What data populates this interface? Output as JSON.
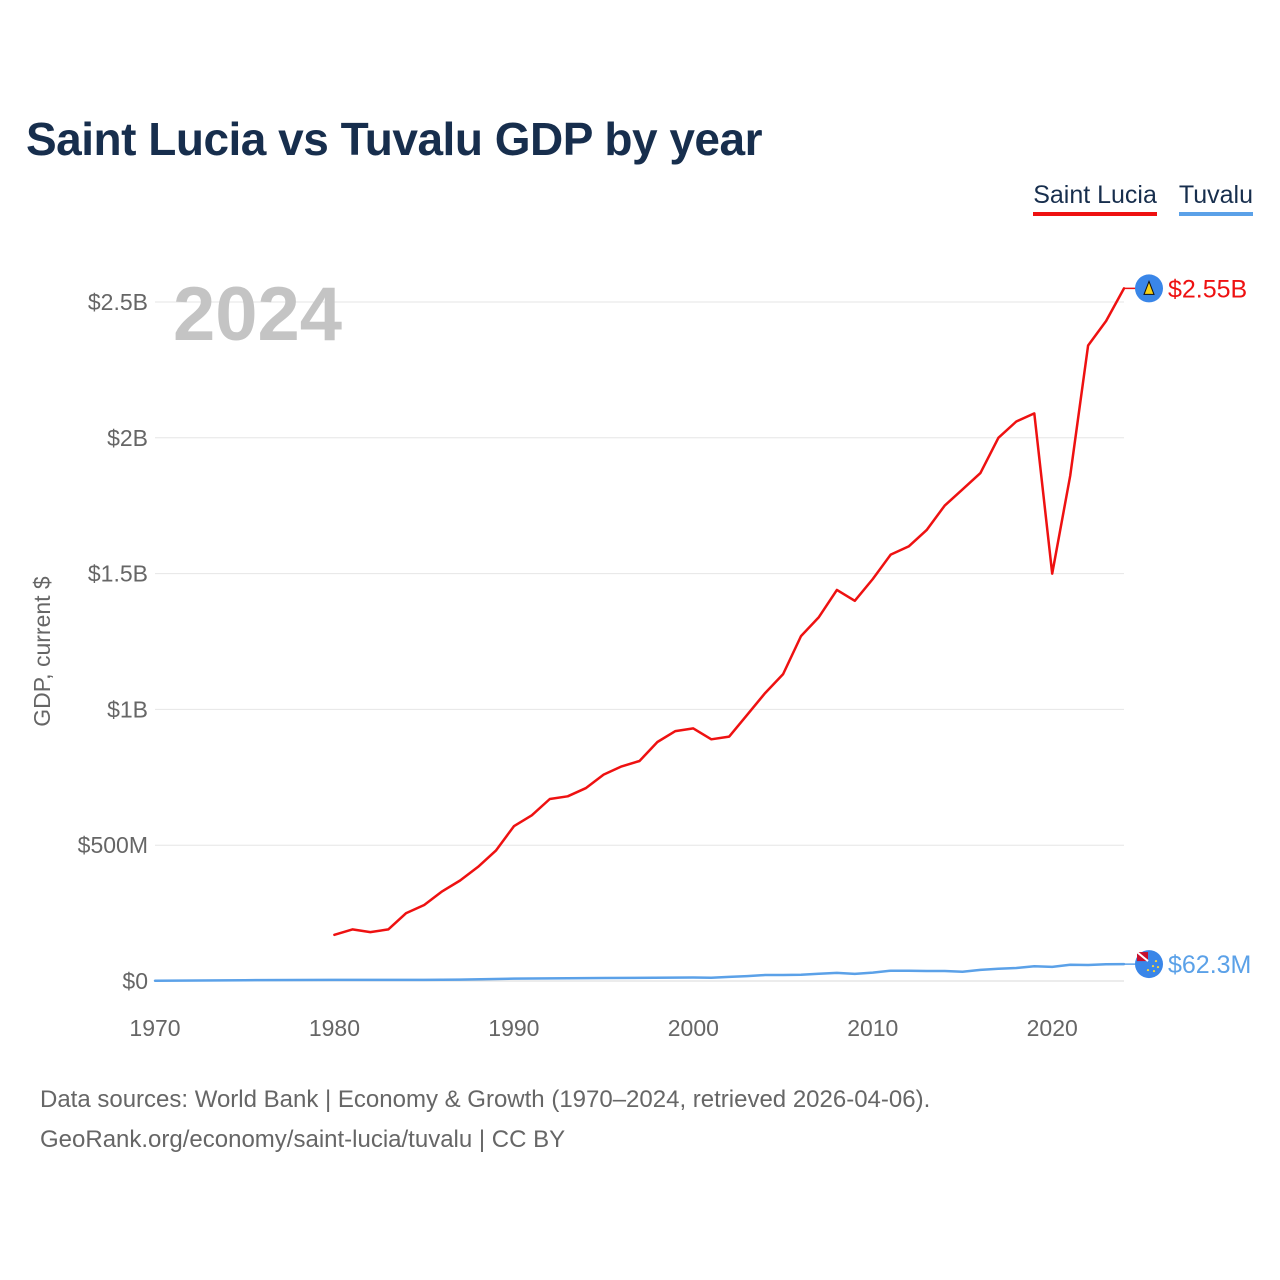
{
  "title": "Saint Lucia vs Tuvalu GDP by year",
  "legend": [
    {
      "label": "Saint Lucia",
      "color": "#ee1111"
    },
    {
      "label": "Tuvalu",
      "color": "#5ba1e8"
    }
  ],
  "footer": {
    "line1": "Data sources: World Bank | Economy & Growth (1970–2024, retrieved 2026-04-06).",
    "line2": "GeoRank.org/economy/saint-lucia/tuvalu | CC BY"
  },
  "chart_data": {
    "type": "line",
    "title": "Saint Lucia vs Tuvalu GDP by year",
    "xlabel": "",
    "ylabel": "GDP, current $",
    "xlim": [
      1970,
      2024
    ],
    "ylim": [
      0,
      2.75
    ],
    "y_unit": "billion US$",
    "x_ticks": [
      "1970",
      "1980",
      "1990",
      "2000",
      "2010",
      "2020"
    ],
    "y_ticks": [
      {
        "value": 0,
        "label": "$0"
      },
      {
        "value": 0.5,
        "label": "$500M"
      },
      {
        "value": 1,
        "label": "$1B"
      },
      {
        "value": 1.5,
        "label": "$1.5B"
      },
      {
        "value": 2,
        "label": "$2B"
      },
      {
        "value": 2.5,
        "label": "$2.5B"
      }
    ],
    "grid": true,
    "current_year": "2024",
    "series": [
      {
        "name": "Saint Lucia",
        "color": "#ee1111",
        "end_label": "$2.55B",
        "x": [
          1980,
          1981,
          1982,
          1983,
          1984,
          1985,
          1986,
          1987,
          1988,
          1989,
          1990,
          1991,
          1992,
          1993,
          1994,
          1995,
          1996,
          1997,
          1998,
          1999,
          2000,
          2001,
          2002,
          2003,
          2004,
          2005,
          2006,
          2007,
          2008,
          2009,
          2010,
          2011,
          2012,
          2013,
          2014,
          2015,
          2016,
          2017,
          2018,
          2019,
          2020,
          2021,
          2022,
          2023,
          2024
        ],
        "values": [
          0.17,
          0.19,
          0.18,
          0.19,
          0.25,
          0.28,
          0.33,
          0.37,
          0.42,
          0.48,
          0.57,
          0.61,
          0.67,
          0.68,
          0.71,
          0.76,
          0.79,
          0.81,
          0.88,
          0.92,
          0.93,
          0.89,
          0.9,
          0.98,
          1.06,
          1.13,
          1.27,
          1.34,
          1.44,
          1.4,
          1.48,
          1.57,
          1.6,
          1.66,
          1.75,
          1.81,
          1.87,
          2.0,
          2.06,
          2.09,
          1.5,
          1.86,
          2.34,
          2.43,
          2.55
        ]
      },
      {
        "name": "Tuvalu",
        "color": "#5ba1e8",
        "end_label": "$62.3M",
        "x": [
          1970,
          1975,
          1980,
          1985,
          1987,
          1990,
          1995,
          2000,
          2001,
          2002,
          2003,
          2004,
          2005,
          2006,
          2007,
          2008,
          2009,
          2010,
          2011,
          2012,
          2013,
          2014,
          2015,
          2016,
          2017,
          2018,
          2019,
          2020,
          2021,
          2022,
          2023,
          2024
        ],
        "values": [
          0.001,
          0.003,
          0.004,
          0.004,
          0.005,
          0.009,
          0.011,
          0.013,
          0.012,
          0.015,
          0.018,
          0.022,
          0.022,
          0.023,
          0.027,
          0.03,
          0.026,
          0.031,
          0.038,
          0.038,
          0.037,
          0.037,
          0.034,
          0.041,
          0.045,
          0.048,
          0.054,
          0.052,
          0.06,
          0.059,
          0.062,
          0.0623
        ]
      }
    ]
  }
}
